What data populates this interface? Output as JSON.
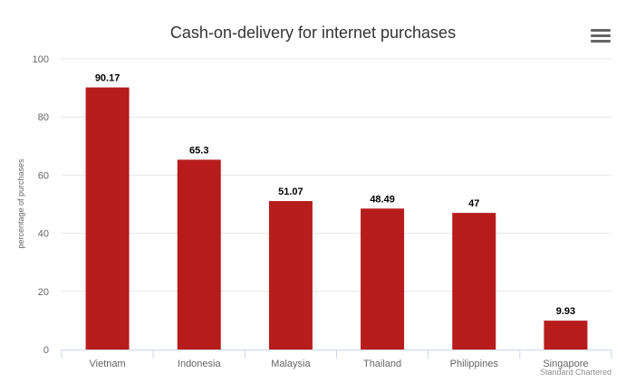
{
  "chart_data": {
    "type": "bar",
    "title": "Cash-on-delivery for internet purchases",
    "ylabel": "percentage of purchases",
    "xlabel": "",
    "categories": [
      "Vietnam",
      "Indonesia",
      "Malaysia",
      "Thailand",
      "Philippines",
      "Singapore"
    ],
    "values": [
      90.17,
      65.3,
      51.07,
      48.49,
      47,
      9.93
    ],
    "data_labels": [
      "90.17",
      "65.3",
      "51.07",
      "48.49",
      "47",
      "9.93"
    ],
    "ylim": [
      0,
      100
    ],
    "yticks": [
      "0",
      "20",
      "40",
      "60",
      "80",
      "100"
    ],
    "grid": true,
    "legend": "none",
    "bar_color": "#b71c1c"
  },
  "credit": "Standard Chartered",
  "menu": {
    "icon": "hamburger-menu-icon"
  }
}
